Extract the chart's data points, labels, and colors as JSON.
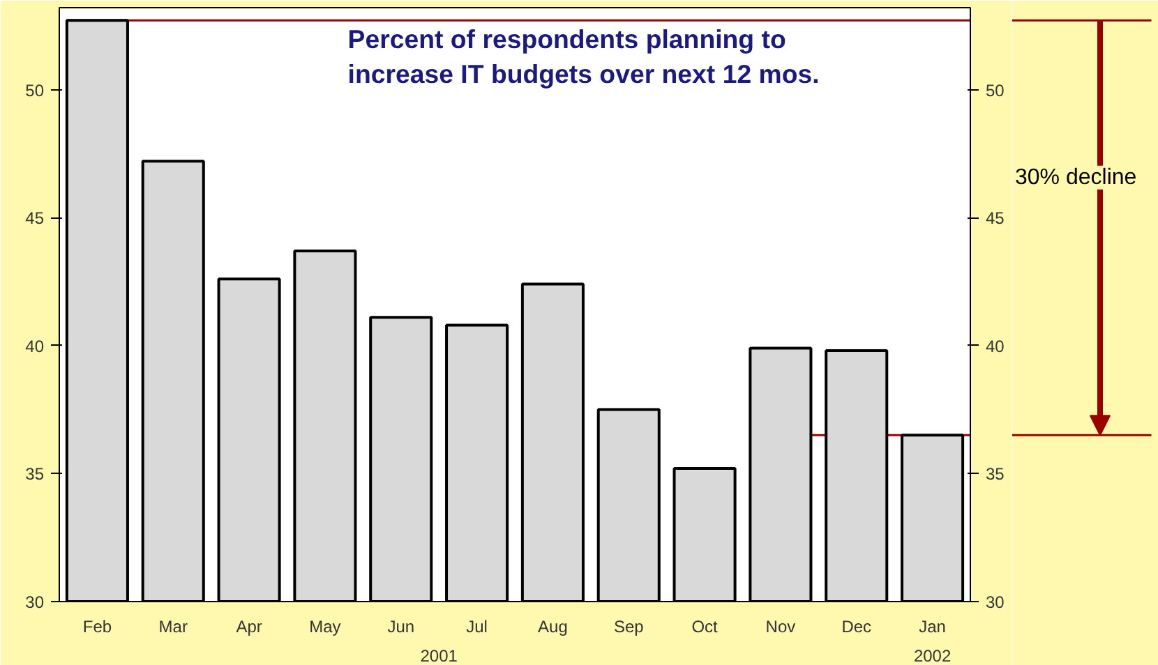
{
  "chart_data": {
    "type": "bar",
    "title": "Percent of respondents planning to\nincrease IT budgets over next 12 mos.",
    "categories": [
      "Feb",
      "Mar",
      "Apr",
      "May",
      "Jun",
      "Jul",
      "Aug",
      "Sep",
      "Oct",
      "Nov",
      "Dec",
      "Jan"
    ],
    "values": [
      52.7,
      47.2,
      42.6,
      43.7,
      41.1,
      40.8,
      42.4,
      37.5,
      35.2,
      39.9,
      39.8,
      36.5
    ],
    "color": "#d9d9d9",
    "ylim": [
      30,
      53.2
    ],
    "yticks": [
      30,
      35,
      40,
      45,
      50
    ],
    "y2lim": [
      30,
      53.2
    ],
    "y2ticks": [
      30,
      35,
      40,
      45,
      50
    ],
    "ref_lines": [
      {
        "axis": "y",
        "value": 52.7,
        "color": "#990000"
      },
      {
        "axis": "y",
        "value": 36.5,
        "color": "#990000"
      }
    ],
    "annotations": [
      "2001",
      "2002",
      "30% decline"
    ],
    "grid": false
  }
}
